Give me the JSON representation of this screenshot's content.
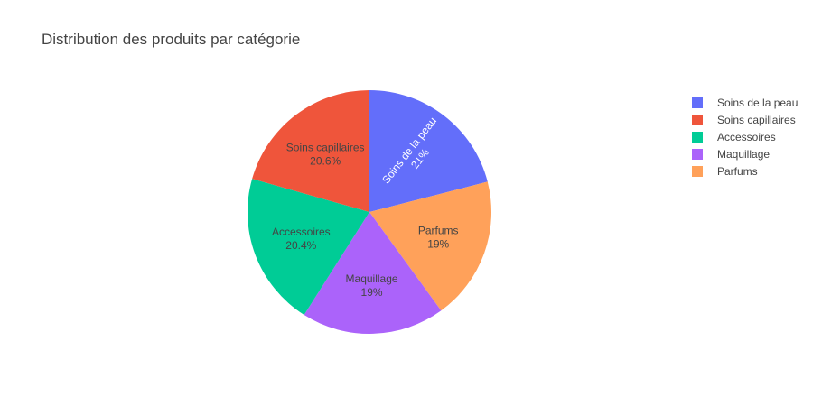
{
  "chart_data": {
    "type": "pie",
    "title": "Distribution des produits par catégorie",
    "start_angle_deg": 90,
    "direction": "clockwise",
    "slices": [
      {
        "label": "Soins de la peau",
        "percent_text": "21%",
        "value": 21.0,
        "color": "#636efa",
        "text_color": "#ffffff",
        "radial_label": true
      },
      {
        "label": "Parfums",
        "percent_text": "19%",
        "value": 19.0,
        "color": "#ffa15a",
        "text_color": "#444444",
        "radial_label": false
      },
      {
        "label": "Maquillage",
        "percent_text": "19%",
        "value": 19.0,
        "color": "#ab63fa",
        "text_color": "#444444",
        "radial_label": false
      },
      {
        "label": "Accessoires",
        "percent_text": "20.4%",
        "value": 20.4,
        "color": "#00cc96",
        "text_color": "#444444",
        "radial_label": false
      },
      {
        "label": "Soins capillaires",
        "percent_text": "20.6%",
        "value": 20.6,
        "color": "#ef553b",
        "text_color": "#444444",
        "radial_label": false
      }
    ],
    "legend": {
      "placement": "top-right",
      "entries": [
        {
          "label": "Soins de la peau",
          "color": "#636efa"
        },
        {
          "label": "Soins capillaires",
          "color": "#ef553b"
        },
        {
          "label": "Accessoires",
          "color": "#00cc96"
        },
        {
          "label": "Maquillage",
          "color": "#ab63fa"
        },
        {
          "label": "Parfums",
          "color": "#ffa15a"
        }
      ]
    }
  }
}
